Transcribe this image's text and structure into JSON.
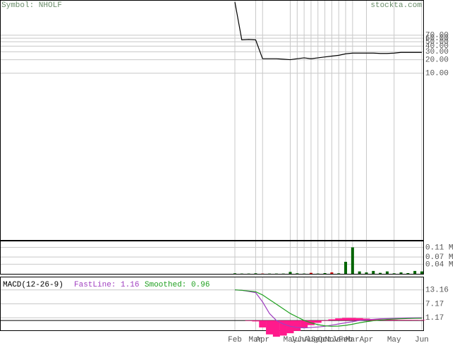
{
  "header": {
    "symbol": "Symbol: NHOLF",
    "site": "stockta.com"
  },
  "chart_data": [
    {
      "type": "line",
      "log_scale": true,
      "color": "#000000",
      "categories": [
        "Feb",
        null,
        null,
        "Mar",
        "Apr",
        null,
        null,
        null,
        "May",
        "Jun",
        "Jul",
        "Aug",
        "Sep",
        "Oct",
        "Nov",
        "Jan",
        "Feb",
        "Mar",
        null,
        "Apr",
        null,
        null,
        null,
        "May",
        null,
        null,
        null,
        "Jun"
      ],
      "values": [
        380,
        55,
        56,
        55,
        21,
        21,
        21,
        20.5,
        20,
        21,
        22,
        21,
        22,
        23,
        24,
        25,
        27,
        28,
        28,
        28,
        28,
        27.5,
        27.5,
        28,
        29,
        29,
        29,
        29
      ],
      "ylim": [
        0.002,
        407
      ],
      "yticks": [
        {
          "value": 70,
          "label": "70.00"
        },
        {
          "value": 60,
          "label": "60.00"
        },
        {
          "value": 50,
          "label": "50.00"
        },
        {
          "value": 40,
          "label": "40.00"
        },
        {
          "value": 30,
          "label": "30.00"
        },
        {
          "value": 20,
          "label": "20.00"
        },
        {
          "value": 10,
          "label": "10.00"
        }
      ],
      "grid": true
    },
    {
      "type": "bar",
      "values": [
        0.002,
        0.001,
        0.001,
        0.002,
        0.001,
        0.001,
        0.001,
        0.001,
        0.008,
        0.002,
        0.001,
        0.004,
        0.001,
        0.003,
        0.006,
        0.002,
        0.05,
        0.11,
        0.01,
        0.006,
        0.012,
        0.004,
        0.01,
        0.002,
        0.006,
        0.003,
        0.012,
        0.01
      ],
      "colors": [
        "#006400",
        "#006400",
        "#006400",
        "#006400",
        "#cc0000",
        "#006400",
        "#006400",
        "#006400",
        "#006400",
        "#006400",
        "#006400",
        "#cc0000",
        "#006400",
        "#006400",
        "#cc0000",
        "#006400",
        "#006400",
        "#006400",
        "#006400",
        "#006400",
        "#006400",
        "#006400",
        "#006400",
        "#006400",
        "#006400",
        "#006400",
        "#006400",
        "#006400"
      ],
      "ylim": [
        0,
        0.135
      ],
      "yticks": [
        {
          "value": 0.11,
          "label": "0.11 M"
        },
        {
          "value": 0.07,
          "label": "0.07 M"
        },
        {
          "value": 0.04,
          "label": "0.04 M"
        }
      ],
      "grid": true
    },
    {
      "type": "macd",
      "title": "MACD(12-26-9)",
      "annotations": [
        "FastLine: 1.16",
        "Smoothed: 0.96"
      ],
      "series": [
        {
          "style": "bar",
          "color": "#ff1a8c",
          "values": [
            0,
            0,
            -0.2,
            -0.4,
            -3,
            -6,
            -7,
            -6.5,
            -5.5,
            -4.5,
            -3.2,
            -2,
            -1,
            -0.2,
            0.5,
            0.9,
            1.1,
            1.1,
            1.0,
            0.8,
            0.6,
            0.5,
            0.35,
            0.3,
            0.25,
            0.25,
            0.23,
            0.2
          ]
        },
        {
          "style": "line",
          "color": "#a040c0",
          "values": [
            13.16,
            13,
            12.5,
            12,
            8,
            3,
            0,
            -1.5,
            -2.5,
            -3,
            -3.2,
            -3,
            -2.8,
            -2.5,
            -2,
            -1.5,
            -1,
            -0.5,
            0,
            0.3,
            0.5,
            0.7,
            0.8,
            0.9,
            1.0,
            1.1,
            1.15,
            1.16
          ]
        },
        {
          "style": "line",
          "color": "#20a020",
          "values": [
            13.2,
            13,
            12.7,
            12.4,
            11,
            9,
            7,
            5,
            3,
            1.5,
            0,
            -1,
            -1.8,
            -2.3,
            -2.5,
            -2.4,
            -2.1,
            -1.6,
            -1.0,
            -0.5,
            -0.1,
            0.2,
            0.45,
            0.6,
            0.75,
            0.85,
            0.92,
            0.96
          ]
        }
      ],
      "ylim": [
        -4.23,
        18.57
      ],
      "yticks": [
        13.16,
        7.17,
        1.17
      ],
      "grid": true
    }
  ]
}
